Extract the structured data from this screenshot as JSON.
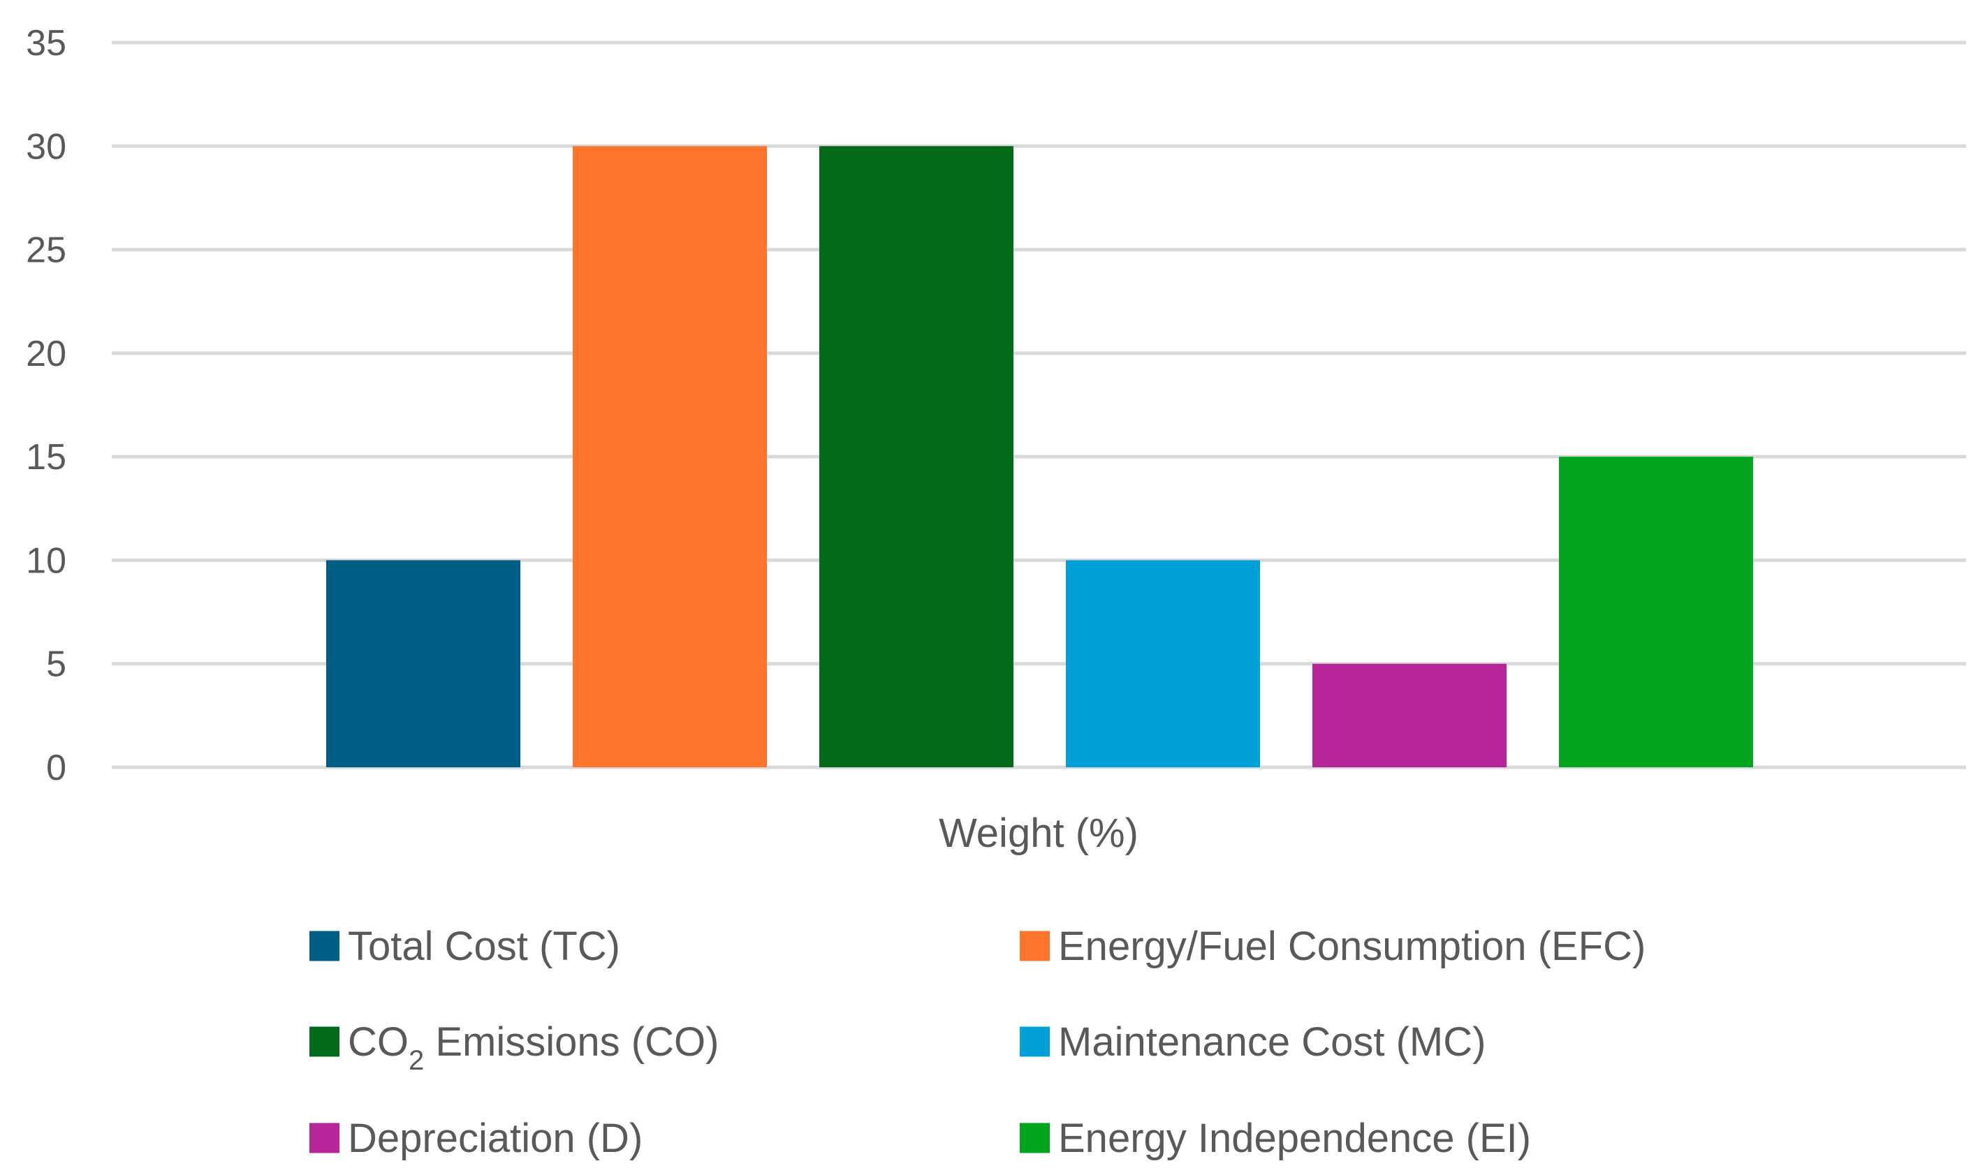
{
  "chart_data": {
    "type": "bar",
    "title": "",
    "xlabel": "Weight (%)",
    "ylabel": "",
    "ylim": [
      0,
      35
    ],
    "yticks": [
      0,
      5,
      10,
      15,
      20,
      25,
      30,
      35
    ],
    "grid": true,
    "legend_position": "bottom",
    "series": [
      {
        "name": "Total Cost (TC)",
        "name_parts": [
          "Total Cost (TC)"
        ],
        "value": 10,
        "color": "#005f86"
      },
      {
        "name": "Energy/Fuel Consumption (EFC)",
        "name_parts": [
          "Energy/Fuel Consumption (EFC)"
        ],
        "value": 30,
        "color": "#fd752c"
      },
      {
        "name": "CO2 Emissions (CO)",
        "name_parts": [
          "CO",
          "2",
          " Emissions (CO)"
        ],
        "value": 30,
        "color": "#046b1a"
      },
      {
        "name": "Maintenance Cost (MC)",
        "name_parts": [
          "Maintenance Cost (MC)"
        ],
        "value": 10,
        "color": "#00a1d9"
      },
      {
        "name": "Depreciation (D)",
        "name_parts": [
          "Depreciation (D)"
        ],
        "value": 5,
        "color": "#b72699"
      },
      {
        "name": "Energy Independence (EI)",
        "name_parts": [
          "Energy Independence (EI)"
        ],
        "value": 15,
        "color": "#02a51d"
      }
    ]
  }
}
